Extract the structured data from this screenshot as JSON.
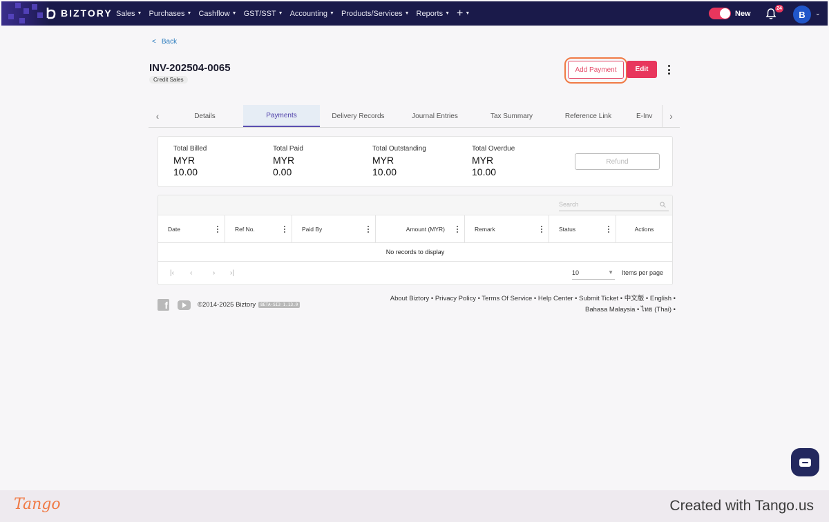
{
  "topbar": {
    "brand": "BIZTORY",
    "nav": [
      {
        "label": "Sales"
      },
      {
        "label": "Purchases"
      },
      {
        "label": "Cashflow"
      },
      {
        "label": "GST/SST"
      },
      {
        "label": "Accounting"
      },
      {
        "label": "Products/Services"
      },
      {
        "label": "Reports"
      }
    ],
    "toggle_label": "New",
    "notification_count": "24",
    "avatar_initial": "B",
    "brand_color": "#1a1a4a",
    "accent_color": "#e8365d"
  },
  "header": {
    "back_label": "Back",
    "invoice_number": "INV-202504-0065",
    "type_tag": "Credit Sales",
    "add_payment_label": "Add Payment",
    "edit_label": "Edit"
  },
  "tabs": [
    {
      "label": "Details"
    },
    {
      "label": "Payments",
      "active": true
    },
    {
      "label": "Delivery Records"
    },
    {
      "label": "Journal Entries"
    },
    {
      "label": "Tax Summary"
    },
    {
      "label": "Reference Link"
    },
    {
      "label": "E-Inv"
    }
  ],
  "summary": {
    "items": [
      {
        "label": "Total Billed",
        "currency": "MYR",
        "value": "10.00"
      },
      {
        "label": "Total Paid",
        "currency": "MYR",
        "value": "0.00"
      },
      {
        "label": "Total Outstanding",
        "currency": "MYR",
        "value": "10.00"
      },
      {
        "label": "Total Overdue",
        "currency": "MYR",
        "value": "10.00"
      }
    ],
    "refund_label": "Refund"
  },
  "grid": {
    "search_placeholder": "Search",
    "columns": [
      {
        "label": "Date"
      },
      {
        "label": "Ref No."
      },
      {
        "label": "Paid By"
      },
      {
        "label": "Amount (MYR)"
      },
      {
        "label": "Remark"
      },
      {
        "label": "Status"
      },
      {
        "label": "Actions"
      }
    ],
    "empty_text": "No records to display",
    "page_size": "10",
    "page_size_label": "Items per page"
  },
  "footer": {
    "copyright": "©2014-2025 Biztory",
    "version": "BETA-SI3 1.13.0",
    "links_line1": "About Biztory • Privacy Policy • Terms Of Service • Help Center • Submit Ticket • 中文版 • English •",
    "links_line2": "Bahasa Malaysia • ไทย (Thai) •"
  },
  "tango": {
    "logo": "Tango",
    "credit": "Created with Tango.us"
  }
}
